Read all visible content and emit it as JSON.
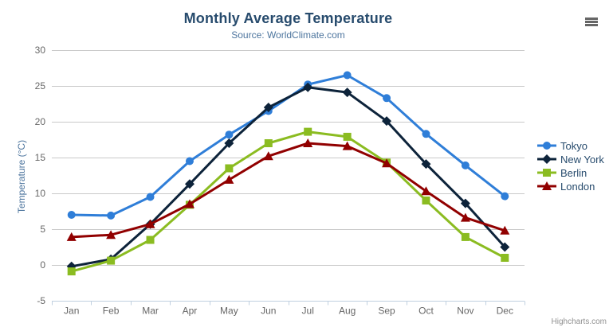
{
  "header": {
    "title": "Monthly Average Temperature",
    "subtitle": "Source: WorldClimate.com"
  },
  "chart_data": {
    "type": "line",
    "title": "Monthly Average Temperature",
    "subtitle": "Source: WorldClimate.com",
    "xlabel": "",
    "ylabel": "Temperature (°C)",
    "ylim": [
      -5,
      30
    ],
    "ytick_step": 5,
    "grid": true,
    "legend_position": "right",
    "categories": [
      "Jan",
      "Feb",
      "Mar",
      "Apr",
      "May",
      "Jun",
      "Jul",
      "Aug",
      "Sep",
      "Oct",
      "Nov",
      "Dec"
    ],
    "series": [
      {
        "name": "Tokyo",
        "color": "#2f7ed8",
        "marker": "circle",
        "values": [
          7.0,
          6.9,
          9.5,
          14.5,
          18.2,
          21.5,
          25.2,
          26.5,
          23.3,
          18.3,
          13.9,
          9.6
        ]
      },
      {
        "name": "New York",
        "color": "#0d233a",
        "marker": "diamond",
        "values": [
          -0.2,
          0.8,
          5.7,
          11.3,
          17.0,
          22.0,
          24.8,
          24.1,
          20.1,
          14.1,
          8.6,
          2.5
        ]
      },
      {
        "name": "Berlin",
        "color": "#8bbc21",
        "marker": "square",
        "values": [
          -0.9,
          0.6,
          3.5,
          8.4,
          13.5,
          17.0,
          18.6,
          17.9,
          14.3,
          9.0,
          3.9,
          1.0
        ]
      },
      {
        "name": "London",
        "color": "#910000",
        "marker": "triangle",
        "values": [
          3.9,
          4.2,
          5.7,
          8.5,
          11.9,
          15.2,
          17.0,
          16.6,
          14.2,
          10.3,
          6.6,
          4.8
        ]
      }
    ],
    "axis_colors": {
      "tick_label": "#666666",
      "grid_line": "#c9c9c9",
      "axis_line": "#c0d0e0"
    }
  },
  "credits": {
    "label": "Highcharts.com"
  },
  "menu": {
    "icon": "hamburger-menu-icon"
  }
}
